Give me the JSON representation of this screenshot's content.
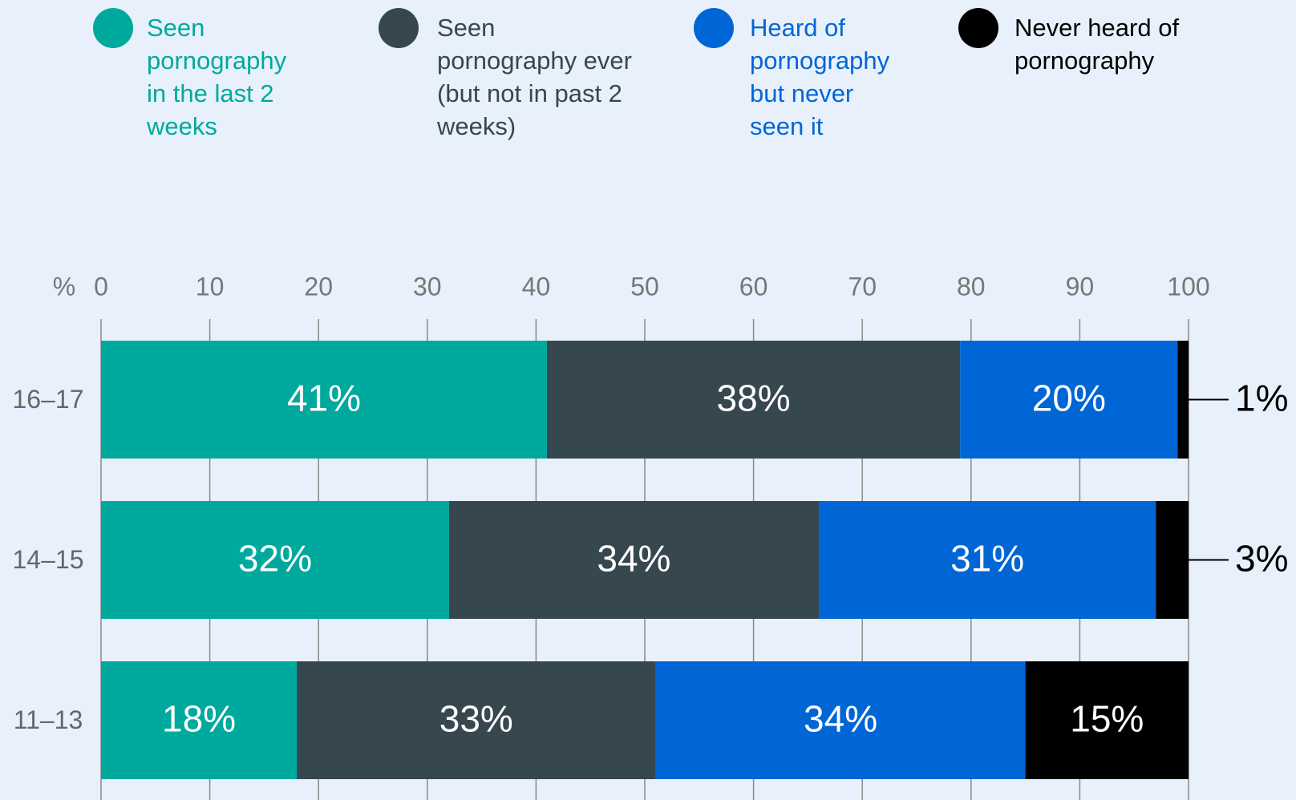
{
  "chart_data": {
    "type": "stacked-barh",
    "categories": [
      "16–17",
      "14–15",
      "11–13"
    ],
    "series": [
      {
        "name": "Seen pornography in the last 2 weeks",
        "color": "#00a99d",
        "values": [
          41,
          32,
          18
        ],
        "value_labels": [
          "41%",
          "32%",
          "18%"
        ]
      },
      {
        "name": "Seen pornography ever (but not in past 2 weeks)",
        "color": "#37474f",
        "values": [
          38,
          34,
          33
        ],
        "value_labels": [
          "38%",
          "34%",
          "33%"
        ]
      },
      {
        "name": "Heard of pornography but never seen it",
        "color": "#0066d6",
        "values": [
          20,
          31,
          34
        ],
        "value_labels": [
          "20%",
          "31%",
          "34%"
        ]
      },
      {
        "name": "Never heard of pornography",
        "color": "#000000",
        "values": [
          1,
          3,
          15
        ],
        "value_labels": [
          "1%",
          "3%",
          "15%"
        ]
      }
    ],
    "xlabel": "%",
    "xlim": [
      0,
      100
    ],
    "xticks": [
      0,
      10,
      20,
      30,
      40,
      50,
      60,
      70,
      80,
      90,
      100
    ],
    "grid": true,
    "legend": "top"
  }
}
